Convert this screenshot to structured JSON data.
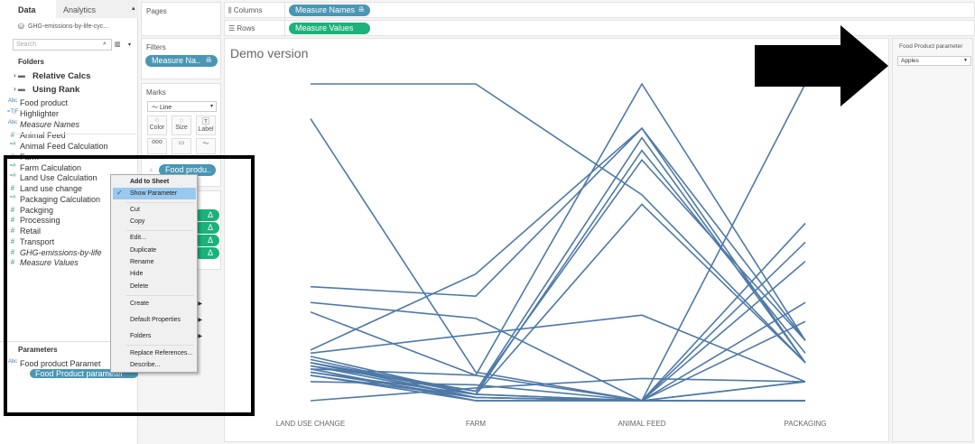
{
  "tabs": {
    "data": "Data",
    "analytics": "Analytics"
  },
  "datasource": "GHG-emissions-by-life-cyc...",
  "search_placeholder": "Search",
  "folders_label": "Folders",
  "fields": [
    {
      "label": "Relative Calcs",
      "type": "folder"
    },
    {
      "label": "Using Rank",
      "type": "folder"
    },
    {
      "label": "Food product",
      "type": "Abc"
    },
    {
      "label": "Highlighter",
      "type": "=T|F"
    },
    {
      "label": "Measure Names",
      "type": "Abc",
      "italic": true
    },
    {
      "label": "Animal Feed",
      "type": "#"
    },
    {
      "label": "Animal Feed Calculation",
      "type": "=#"
    },
    {
      "label": "Farm",
      "type": "#"
    },
    {
      "label": "Farm Calculation",
      "type": "=#"
    },
    {
      "label": "Land Use Calculation",
      "type": "=#"
    },
    {
      "label": "Land use change",
      "type": "#"
    },
    {
      "label": "Packaging Calculation",
      "type": "=#"
    },
    {
      "label": "Packging",
      "type": "#"
    },
    {
      "label": "Processing",
      "type": "#"
    },
    {
      "label": "Retail",
      "type": "#"
    },
    {
      "label": "Transport",
      "type": "#"
    },
    {
      "label": "GHG-emissions-by-life",
      "type": "#",
      "italic": true
    },
    {
      "label": "Measure Values",
      "type": "#",
      "italic": true
    }
  ],
  "parameters_label": "Parameters",
  "parameters": [
    "Food product Paramet",
    "Food Product parameter"
  ],
  "context_menu": {
    "header": "Add to Sheet",
    "items": [
      "Show Parameter",
      "Cut",
      "Copy",
      "Edit...",
      "Duplicate",
      "Rename",
      "Hide",
      "Delete",
      "Create",
      "Default Properties",
      "Folders",
      "Replace References...",
      "Describe..."
    ],
    "checked": "Show Parameter"
  },
  "shelves": {
    "pages": "Pages",
    "filters": "Filters",
    "filter_pill": "Measure Na..",
    "marks": "Marks",
    "mark_type": "Line",
    "mark_buttons": [
      "Color",
      "Size",
      "Label"
    ],
    "detail_pill": "Food produ..",
    "columns_label": "Columns",
    "rows_label": "Rows",
    "columns_pill": "Measure Names",
    "rows_pill": "Measure Values"
  },
  "sheet_title": "Demo version",
  "param_card": {
    "title": "Food Product parameter",
    "value": "Apples"
  },
  "colors": {
    "line": "#4e79a7",
    "blue_pill": "#4a96b4",
    "green_pill": "#1bb27b"
  },
  "chart_data": {
    "type": "line",
    "categories": [
      "LAND USE CHANGE",
      "FARM",
      "ANIMAL FEED",
      "PACKAGING"
    ],
    "note_scale": "relative (no value axis shown)",
    "series": [
      {
        "values": [
          100,
          100,
          65,
          12
        ]
      },
      {
        "values": [
          89,
          9,
          0,
          0
        ]
      },
      {
        "values": [
          36,
          33,
          86,
          19
        ]
      },
      {
        "values": [
          31,
          26,
          0,
          6
        ]
      },
      {
        "values": [
          16,
          40,
          86,
          12
        ]
      },
      {
        "values": [
          15,
          21,
          27,
          6
        ]
      },
      {
        "values": [
          0,
          4,
          7,
          6
        ]
      },
      {
        "values": [
          10,
          8,
          100,
          19
        ]
      },
      {
        "values": [
          12,
          3,
          83,
          12
        ]
      },
      {
        "values": [
          13,
          2,
          79,
          15
        ]
      },
      {
        "values": [
          11,
          3,
          76,
          19
        ]
      },
      {
        "values": [
          14,
          2,
          62,
          12
        ]
      },
      {
        "values": [
          12,
          1,
          0,
          100
        ]
      },
      {
        "values": [
          11,
          1,
          0,
          56
        ]
      },
      {
        "values": [
          10,
          0,
          0,
          50
        ]
      },
      {
        "values": [
          9,
          1,
          0,
          44
        ]
      },
      {
        "values": [
          12,
          2,
          0,
          31
        ]
      },
      {
        "values": [
          10,
          0,
          0,
          25
        ]
      },
      {
        "values": [
          8,
          1,
          0,
          6
        ]
      },
      {
        "values": [
          28,
          8,
          0,
          0
        ]
      },
      {
        "values": [
          6,
          5,
          0,
          0
        ]
      },
      {
        "values": [
          8,
          0,
          0,
          0
        ]
      },
      {
        "values": [
          9,
          2,
          0,
          0
        ]
      }
    ]
  }
}
